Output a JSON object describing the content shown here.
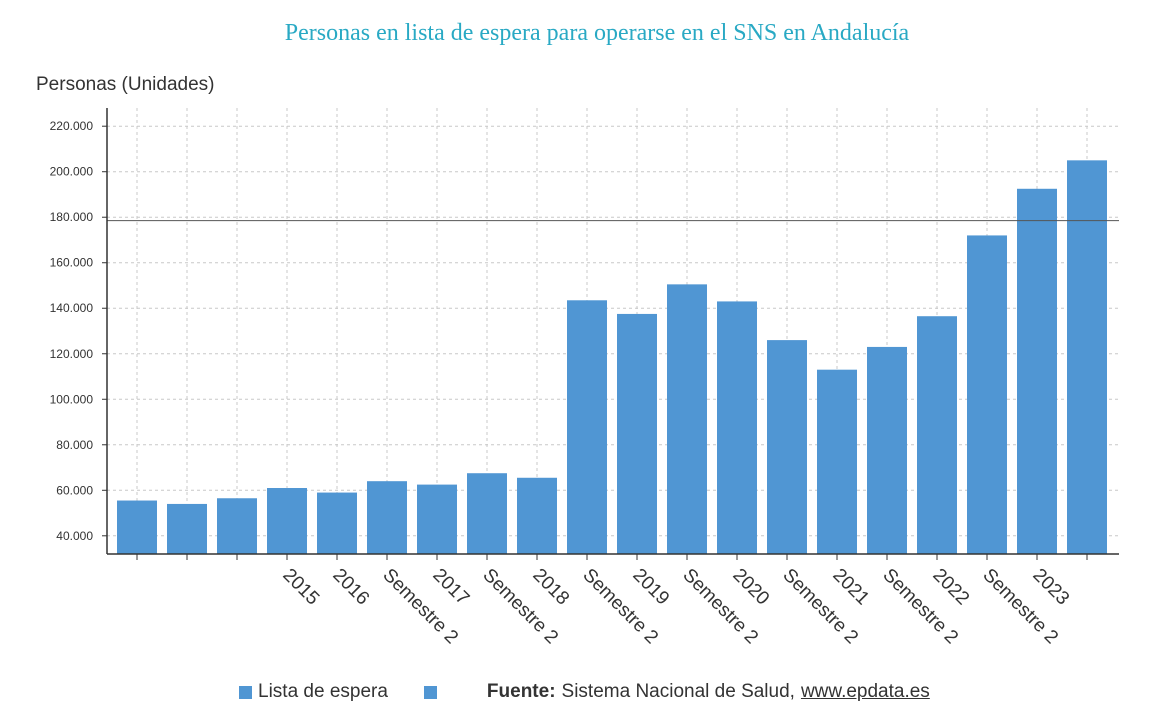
{
  "chart_data": {
    "type": "bar",
    "title": "Personas en lista de espera para operarse en el SNS en Andalucía",
    "ylabel": "Personas (Unidades)",
    "xlabel": "",
    "ylim": [
      32000,
      228000
    ],
    "yticks": [
      40000,
      60000,
      80000,
      100000,
      120000,
      140000,
      160000,
      180000,
      200000,
      220000
    ],
    "ytick_labels": [
      "40.000",
      "60.000",
      "80.000",
      "100.000",
      "120.000",
      "140.000",
      "160.000",
      "180.000",
      "200.000",
      "220.000"
    ],
    "grid": true,
    "reference_line": 178500,
    "categories": [
      "",
      "",
      "",
      "2015",
      "2016",
      "Semestre 2",
      "2017",
      "Semestre 2",
      "2018",
      "Semestre 2",
      "2019",
      "Semestre 2",
      "2020",
      "Semestre 2",
      "2021",
      "Semestre 2",
      "2022",
      "Semestre 2",
      "2023",
      ""
    ],
    "series": [
      {
        "name": "Lista de espera",
        "color": "#5096d3",
        "values": [
          55500,
          54000,
          56500,
          61000,
          59000,
          64000,
          62500,
          67500,
          65500,
          143500,
          137500,
          150500,
          143000,
          126000,
          113000,
          123000,
          136500,
          172000,
          192500,
          205000
        ]
      }
    ]
  },
  "legend": {
    "series_label": "Lista de espera",
    "series_color": "#5096d3",
    "source_prefix": "Fuente:",
    "source_text": "Sistema Nacional de Salud,",
    "source_link": "www.epdata.es"
  }
}
